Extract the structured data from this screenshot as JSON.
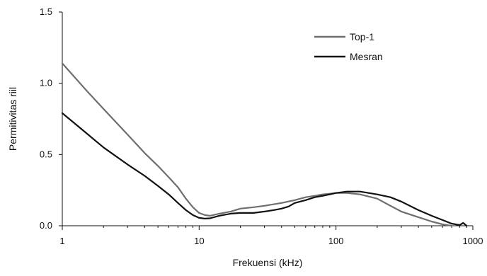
{
  "chart_data": {
    "type": "line",
    "title": "",
    "xlabel": "Frekuensi (kHz)",
    "ylabel": "Permitivitas riil",
    "x_scale": "log",
    "xlim": [
      1,
      1000
    ],
    "ylim": [
      0,
      1.5
    ],
    "grid": false,
    "legend_position": "top-right",
    "x_ticks": [
      {
        "value": 1,
        "label": "1"
      },
      {
        "value": 10,
        "label": "10"
      },
      {
        "value": 100,
        "label": "100"
      },
      {
        "value": 1000,
        "label": "1000"
      }
    ],
    "y_ticks": [
      {
        "value": 0,
        "label": "0.0"
      },
      {
        "value": 0.5,
        "label": "0.5"
      },
      {
        "value": 1.0,
        "label": "1.0"
      },
      {
        "value": 1.5,
        "label": "1.5"
      }
    ],
    "series": [
      {
        "name": "Top-1",
        "color": "#6e6e6e",
        "points": [
          [
            1,
            1.14
          ],
          [
            1.5,
            0.95
          ],
          [
            2,
            0.82
          ],
          [
            3,
            0.64
          ],
          [
            4,
            0.51
          ],
          [
            5,
            0.42
          ],
          [
            6,
            0.34
          ],
          [
            7,
            0.27
          ],
          [
            8,
            0.19
          ],
          [
            9,
            0.13
          ],
          [
            10,
            0.09
          ],
          [
            11,
            0.075
          ],
          [
            12,
            0.07
          ],
          [
            14,
            0.085
          ],
          [
            17,
            0.1
          ],
          [
            20,
            0.12
          ],
          [
            25,
            0.13
          ],
          [
            30,
            0.14
          ],
          [
            40,
            0.16
          ],
          [
            50,
            0.18
          ],
          [
            60,
            0.2
          ],
          [
            70,
            0.21
          ],
          [
            80,
            0.22
          ],
          [
            90,
            0.225
          ],
          [
            100,
            0.23
          ],
          [
            120,
            0.23
          ],
          [
            150,
            0.22
          ],
          [
            200,
            0.19
          ],
          [
            250,
            0.14
          ],
          [
            300,
            0.1
          ],
          [
            400,
            0.06
          ],
          [
            500,
            0.03
          ],
          [
            600,
            0.01
          ],
          [
            700,
            0.0
          ]
        ]
      },
      {
        "name": "Mesran",
        "color": "#111111",
        "points": [
          [
            1,
            0.79
          ],
          [
            1.5,
            0.65
          ],
          [
            2,
            0.55
          ],
          [
            3,
            0.43
          ],
          [
            4,
            0.35
          ],
          [
            5,
            0.28
          ],
          [
            6,
            0.22
          ],
          [
            7,
            0.16
          ],
          [
            8,
            0.11
          ],
          [
            9,
            0.075
          ],
          [
            10,
            0.055
          ],
          [
            11,
            0.05
          ],
          [
            12,
            0.052
          ],
          [
            14,
            0.07
          ],
          [
            17,
            0.085
          ],
          [
            20,
            0.09
          ],
          [
            25,
            0.09
          ],
          [
            30,
            0.1
          ],
          [
            35,
            0.11
          ],
          [
            40,
            0.12
          ],
          [
            45,
            0.135
          ],
          [
            50,
            0.16
          ],
          [
            60,
            0.18
          ],
          [
            70,
            0.2
          ],
          [
            80,
            0.21
          ],
          [
            90,
            0.22
          ],
          [
            100,
            0.23
          ],
          [
            120,
            0.24
          ],
          [
            150,
            0.24
          ],
          [
            200,
            0.22
          ],
          [
            250,
            0.2
          ],
          [
            300,
            0.17
          ],
          [
            400,
            0.11
          ],
          [
            500,
            0.07
          ],
          [
            600,
            0.04
          ],
          [
            700,
            0.015
          ],
          [
            800,
            0.005
          ],
          [
            850,
            0.02
          ],
          [
            900,
            0.0
          ]
        ]
      }
    ]
  }
}
